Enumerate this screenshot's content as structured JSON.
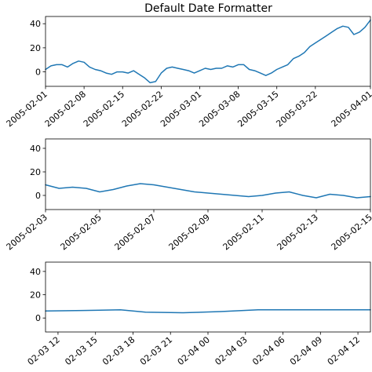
{
  "chart_data": [
    {
      "type": "line",
      "title": "Default Date Formatter",
      "xlabel": "",
      "ylabel": "",
      "grid": false,
      "line_color": "#1f77b4",
      "xlim": [
        "2005-02-01",
        "2005-04-01"
      ],
      "ylim": [
        -12,
        46
      ],
      "yticks": [
        0,
        20,
        40
      ],
      "ytick_labels": [
        "0",
        "20",
        "40"
      ],
      "xticks": [
        "2005-02-01",
        "2005-02-08",
        "2005-02-15",
        "2005-02-22",
        "2005-03-01",
        "2005-03-08",
        "2005-03-15",
        "2005-03-22",
        "2005-04-01"
      ],
      "xtick_labels": [
        "2005-02-01",
        "2005-02-08",
        "2005-02-15",
        "2005-02-22",
        "2005-03-01",
        "2005-03-08",
        "2005-03-15",
        "2005-03-22",
        "2005-04-01"
      ],
      "series": [
        {
          "x": [
            "2005-02-01",
            "2005-02-02",
            "2005-02-03",
            "2005-02-04",
            "2005-02-05",
            "2005-02-06",
            "2005-02-07",
            "2005-02-08",
            "2005-02-09",
            "2005-02-10",
            "2005-02-11",
            "2005-02-12",
            "2005-02-13",
            "2005-02-14",
            "2005-02-15",
            "2005-02-16",
            "2005-02-17",
            "2005-02-18",
            "2005-02-19",
            "2005-02-20",
            "2005-02-21",
            "2005-02-22",
            "2005-02-23",
            "2005-02-24",
            "2005-02-25",
            "2005-02-26",
            "2005-02-27",
            "2005-02-28",
            "2005-03-01",
            "2005-03-02",
            "2005-03-03",
            "2005-03-04",
            "2005-03-05",
            "2005-03-06",
            "2005-03-07",
            "2005-03-08",
            "2005-03-09",
            "2005-03-10",
            "2005-03-11",
            "2005-03-12",
            "2005-03-13",
            "2005-03-14",
            "2005-03-15",
            "2005-03-16",
            "2005-03-17",
            "2005-03-18",
            "2005-03-19",
            "2005-03-20",
            "2005-03-21",
            "2005-03-22",
            "2005-03-23",
            "2005-03-24",
            "2005-03-25",
            "2005-03-26",
            "2005-03-27",
            "2005-03-28",
            "2005-03-29",
            "2005-03-30",
            "2005-03-31",
            "2005-04-01"
          ],
          "y": [
            2,
            5,
            6,
            6,
            4,
            7,
            9,
            8,
            4,
            2,
            1,
            -1,
            -2,
            0,
            0,
            -1,
            1,
            -2,
            -5,
            -9,
            -8,
            -1,
            3,
            4,
            3,
            2,
            1,
            -1,
            1,
            3,
            2,
            3,
            3,
            5,
            4,
            6,
            6,
            2,
            1,
            -1,
            -3,
            -1,
            2,
            4,
            6,
            11,
            13,
            16,
            21,
            24,
            27,
            30,
            33,
            36,
            38,
            37,
            31,
            33,
            37,
            43
          ]
        }
      ]
    },
    {
      "type": "line",
      "title": "",
      "xlabel": "",
      "ylabel": "",
      "grid": false,
      "line_color": "#1f77b4",
      "xlim": [
        "2005-02-03",
        "2005-02-15"
      ],
      "ylim": [
        -12,
        48
      ],
      "yticks": [
        0,
        20,
        40
      ],
      "ytick_labels": [
        "0",
        "20",
        "40"
      ],
      "xticks": [
        "2005-02-03",
        "2005-02-05",
        "2005-02-07",
        "2005-02-09",
        "2005-02-11",
        "2005-02-13",
        "2005-02-15"
      ],
      "xtick_labels": [
        "2005-02-03",
        "2005-02-05",
        "2005-02-07",
        "2005-02-09",
        "2005-02-11",
        "2005-02-13",
        "2005-02-15"
      ],
      "series": [
        {
          "x": [
            "2005-02-03",
            "2005-02-03T12",
            "2005-02-04",
            "2005-02-04T12",
            "2005-02-05",
            "2005-02-05T12",
            "2005-02-06",
            "2005-02-06T12",
            "2005-02-07",
            "2005-02-07T12",
            "2005-02-08",
            "2005-02-08T12",
            "2005-02-09",
            "2005-02-09T12",
            "2005-02-10",
            "2005-02-10T12",
            "2005-02-11",
            "2005-02-11T12",
            "2005-02-12",
            "2005-02-12T12",
            "2005-02-13",
            "2005-02-13T12",
            "2005-02-14",
            "2005-02-14T12",
            "2005-02-15"
          ],
          "y": [
            9,
            6,
            7,
            6,
            3,
            5,
            8,
            10,
            9,
            7,
            5,
            3,
            2,
            1,
            0,
            -1,
            0,
            2,
            3,
            0,
            -2,
            1,
            0,
            -2,
            -1
          ]
        }
      ]
    },
    {
      "type": "line",
      "title": "",
      "xlabel": "",
      "ylabel": "",
      "grid": false,
      "line_color": "#1f77b4",
      "xlim": [
        "2005-02-03 11:00",
        "2005-02-04 13:00"
      ],
      "ylim": [
        -12,
        48
      ],
      "yticks": [
        0,
        20,
        40
      ],
      "ytick_labels": [
        "0",
        "20",
        "40"
      ],
      "xticks": [
        "2005-02-03 12:00",
        "2005-02-03 15:00",
        "2005-02-03 18:00",
        "2005-02-03 21:00",
        "2005-02-04 00:00",
        "2005-02-04 03:00",
        "2005-02-04 06:00",
        "2005-02-04 09:00",
        "2005-02-04 12:00"
      ],
      "xtick_labels": [
        "02-03 12",
        "02-03 15",
        "02-03 18",
        "02-03 21",
        "02-04 00",
        "02-04 03",
        "02-04 06",
        "02-04 09",
        "02-04 12"
      ],
      "series": [
        {
          "x": [
            "2005-02-03 11:00",
            "2005-02-03 14:00",
            "2005-02-03 17:00",
            "2005-02-03 19:00",
            "2005-02-03 22:00",
            "2005-02-04 01:00",
            "2005-02-04 04:00",
            "2005-02-04 07:00",
            "2005-02-04 10:00",
            "2005-02-04 13:00"
          ],
          "y": [
            6,
            6.5,
            7,
            5,
            4.5,
            5.5,
            7,
            7,
            7,
            7
          ]
        }
      ]
    }
  ]
}
